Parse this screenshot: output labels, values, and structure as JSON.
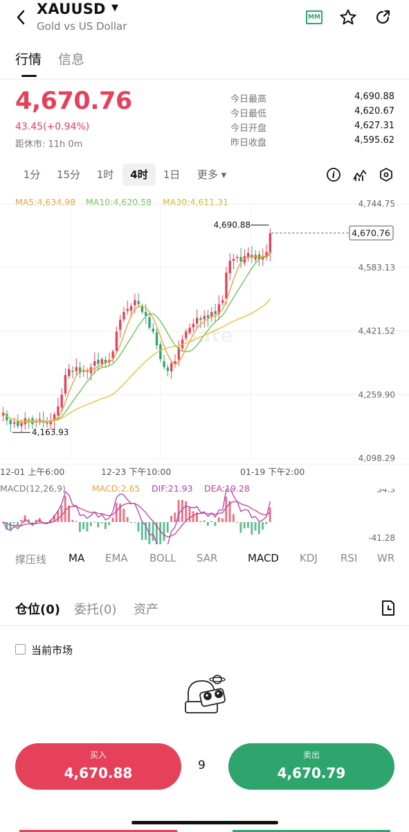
{
  "header": {
    "symbol": "XAUUSD",
    "subtitle": "Gold vs US Dollar",
    "mm_badge": "MM",
    "icons": [
      "back-icon",
      "caret-down-icon",
      "mm-icon",
      "star-icon",
      "share-icon"
    ]
  },
  "tabs": [
    {
      "label": "行情"
    },
    {
      "label": "信息"
    }
  ],
  "quote": {
    "price": "4,670.76",
    "change": "43.45(+0.94%)",
    "close_time": "距休市: 11h 0m"
  },
  "stats": [
    {
      "label": "今日最高",
      "value": "4,690.88"
    },
    {
      "label": "今日最低",
      "value": "4,620.67"
    },
    {
      "label": "今日开盘",
      "value": "4,627.31"
    },
    {
      "label": "昨日收盘",
      "value": "4,595.62"
    }
  ],
  "timeframes": [
    "1分",
    "15分",
    "1时",
    "4时",
    "1日",
    "更多 ▾"
  ],
  "active_timeframe": "4时",
  "chart_legend": {
    "ma5": "MA5:4,634.98",
    "ma10": "MA10:4,620.58",
    "ma30": "MA30:4,611.31"
  },
  "macd_legend": {
    "params": "MACD(12,26,9)",
    "macd": "MACD:2.65",
    "dif": "DIF:21.93",
    "dea": "DEA:19.28"
  },
  "chart_data": {
    "type": "candlestick",
    "y_ticks": [
      "4,744.75",
      "4,583.13",
      "4,421.52",
      "4,259.90",
      "4,098.29"
    ],
    "ylim": [
      4098.29,
      4744.75
    ],
    "x_ticks": [
      "12-01 上午6:00",
      "12-23 下午10:00",
      "01-19 下午2:00"
    ],
    "current_price_label": "4,670.76",
    "high_annotation": "4,690.88",
    "low_annotation": "4,163.93",
    "watermark": "Gate",
    "close_trend": [
      4215,
      4195,
      4185,
      4190,
      4180,
      4188,
      4200,
      4195,
      4185,
      4192,
      4198,
      4190,
      4188,
      4195,
      4210,
      4230,
      4260,
      4310,
      4325,
      4318,
      4330,
      4315,
      4322,
      4318,
      4330,
      4345,
      4338,
      4350,
      4340,
      4348,
      4370,
      4420,
      4450,
      4470,
      4478,
      4485,
      4500,
      4490,
      4470,
      4460,
      4430,
      4420,
      4385,
      4350,
      4330,
      4320,
      4340,
      4345,
      4380,
      4400,
      4420,
      4430,
      4440,
      4455,
      4450,
      4460,
      4455,
      4470,
      4465,
      4490,
      4500,
      4570,
      4600,
      4605,
      4610,
      4598,
      4612,
      4620,
      4608,
      4615,
      4605,
      4610,
      4622,
      4670
    ],
    "macd_yticks": [
      "54.3",
      "-41.28"
    ],
    "colors": {
      "up": "#e5415b",
      "down": "#2ea56d",
      "ma5": "#e8a23b",
      "ma10": "#6bc45c",
      "ma30": "#e3c23a",
      "dif": "#b13bb6",
      "dea": "#c0408f"
    }
  },
  "indicators": [
    "撑压线",
    "MA",
    "EMA",
    "BOLL",
    "SAR",
    "MACD",
    "KDJ",
    "RSI",
    "WR"
  ],
  "active_indicators": [
    "MA",
    "MACD"
  ],
  "position_tabs": [
    "仓位(0)",
    "委托(0)",
    "资产"
  ],
  "current_market_label": "当前市场",
  "trade": {
    "buy_label": "买入",
    "buy_price": "4,670.88",
    "spread": "9",
    "sell_label": "卖出",
    "sell_price": "4,670.79"
  },
  "colors": {
    "accent_red": "#e5415b",
    "accent_green": "#2ea56d"
  }
}
